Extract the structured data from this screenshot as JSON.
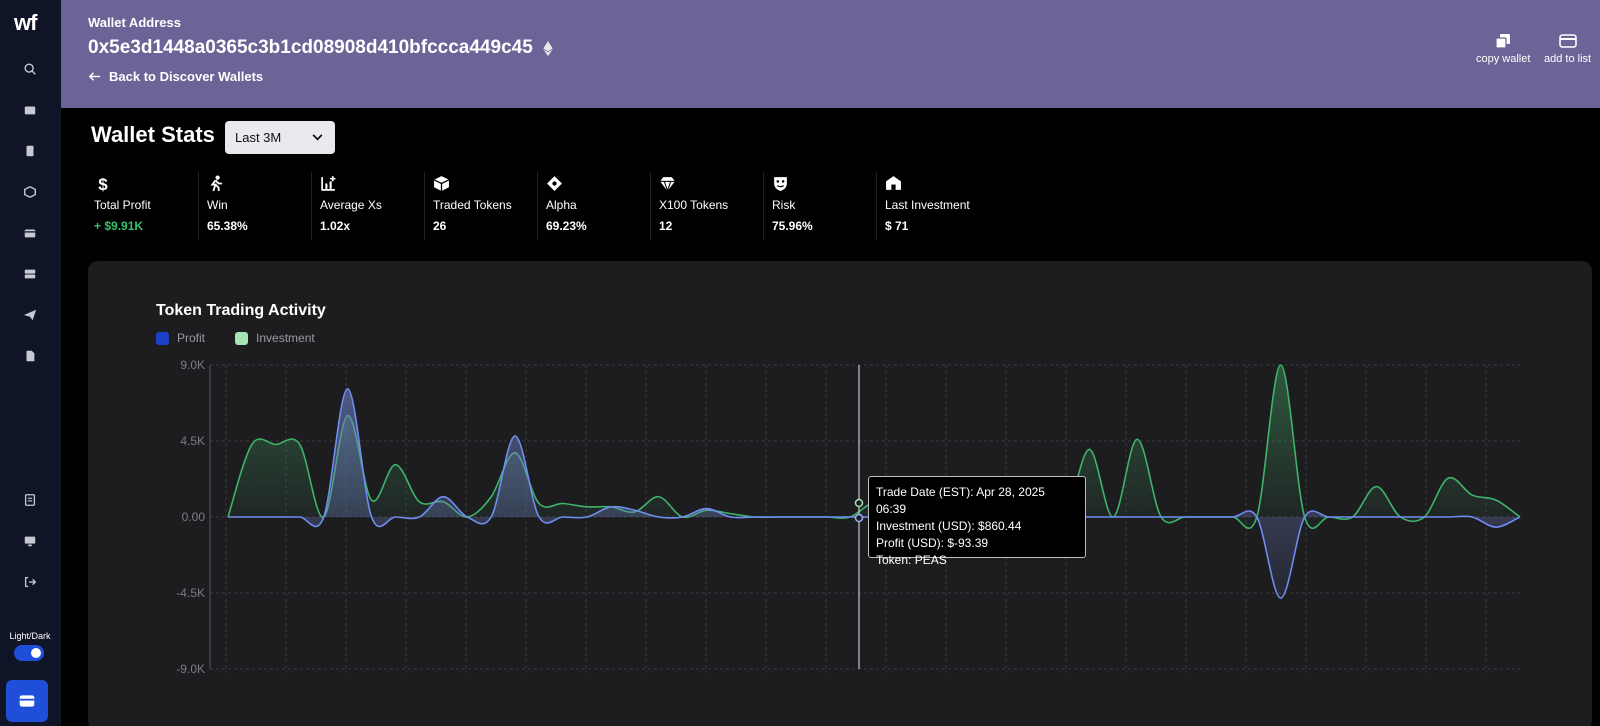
{
  "sidebar": {
    "logo": "wf",
    "theme_label": "Light/Dark",
    "icons": [
      "search-icon",
      "wallet-icon",
      "book-icon",
      "cube-icon",
      "card-icon",
      "server-icon",
      "telegram-icon",
      "document-icon",
      "report-icon",
      "monitor-icon",
      "logout-icon"
    ]
  },
  "header": {
    "label": "Wallet Address",
    "address": "0x5e3d1448a0365c3b1cd08908d410bfccca449c45",
    "back": "Back to Discover Wallets",
    "copy": "copy wallet",
    "add": "add to list",
    "bg": "#6d6397"
  },
  "stats": {
    "title": "Wallet Stats",
    "range": "Last 3M",
    "items": [
      {
        "label": "Total Profit",
        "value": "+ $9.91K"
      },
      {
        "label": "Win",
        "value": "65.38%"
      },
      {
        "label": "Average Xs",
        "value": "1.02x"
      },
      {
        "label": "Traded Tokens",
        "value": "26"
      },
      {
        "label": "Alpha",
        "value": "69.23%"
      },
      {
        "label": "X100 Tokens",
        "value": "12"
      },
      {
        "label": "Risk",
        "value": "75.96%"
      },
      {
        "label": "Last Investment",
        "value": "$ 71"
      }
    ]
  },
  "chart_data": {
    "type": "area",
    "title": "Token Trading Activity",
    "ylim": [
      -9000,
      9000
    ],
    "yticks": [
      "9.0K",
      "4.5K",
      "0.00",
      "-4.5K",
      "-9.0K"
    ],
    "series": [
      {
        "name": "Profit",
        "color": "#1e40c8",
        "line_color": "#6f8df0",
        "values": [
          0,
          0,
          0,
          0,
          0,
          7600,
          0,
          0,
          0,
          1200,
          0,
          0,
          4800,
          0,
          0,
          0,
          600,
          400,
          0,
          0,
          500,
          0,
          0,
          0,
          0,
          0,
          0,
          0,
          0,
          0,
          0,
          0,
          0,
          0,
          0,
          0,
          0,
          0,
          0,
          0,
          0,
          0,
          0,
          0,
          -4800,
          0,
          0,
          0,
          0,
          0,
          0,
          0,
          0,
          -600,
          0
        ]
      },
      {
        "name": "Investment",
        "color": "#a7e4b5",
        "line_color": "#3fb36a",
        "values": [
          0,
          4300,
          4300,
          4300,
          0,
          6000,
          1000,
          3100,
          900,
          900,
          0,
          1200,
          3800,
          800,
          800,
          600,
          600,
          300,
          1200,
          0,
          400,
          200,
          0,
          0,
          0,
          0,
          0,
          900,
          900,
          0,
          0,
          0,
          0,
          0,
          0,
          0,
          4000,
          0,
          4600,
          0,
          0,
          0,
          0,
          0,
          9000,
          0,
          0,
          0,
          1800,
          0,
          0,
          2300,
          1300,
          1000,
          0
        ]
      }
    ]
  },
  "tooltip": {
    "date": "Trade Date (EST): Apr 28, 2025 06:39",
    "investment": "Investment (USD): $860.44",
    "profit": "Profit (USD): $-93.39",
    "token": "Token: PEAS"
  }
}
